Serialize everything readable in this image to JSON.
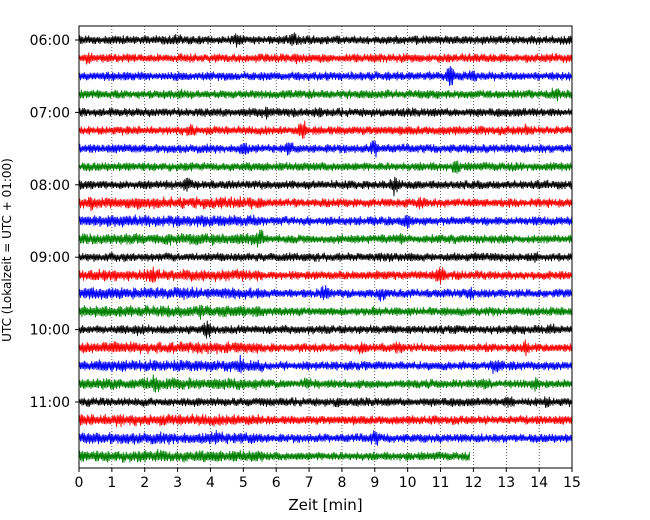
{
  "chart_data": {
    "type": "line",
    "title": "",
    "xlabel": "Zeit  [min]",
    "ylabel": "UTC (Lokalzeit = UTC + 01:00)",
    "xlim": [
      0,
      15
    ],
    "x_ticks": [
      0,
      1,
      2,
      3,
      4,
      5,
      6,
      7,
      8,
      9,
      10,
      11,
      12,
      13,
      14,
      15
    ],
    "y_ticks": [
      "06:00",
      "07:00",
      "08:00",
      "09:00",
      "10:00",
      "11:00"
    ],
    "grid": "vertical dotted lines at each minute",
    "rows_per_hour": 4,
    "trace_duration_min": 15,
    "trace_colors": [
      "#000000",
      "#ff0000",
      "#0000ff",
      "#008000"
    ],
    "traces": [
      {
        "start": "06:00",
        "color": "#000000",
        "end_min": 15,
        "events": [
          [
            3.0,
            1.6
          ],
          [
            4.8,
            1.8
          ],
          [
            6.5,
            2.2
          ]
        ]
      },
      {
        "start": "06:15",
        "color": "#ff0000",
        "end_min": 15,
        "events": [
          [
            0.3,
            1.8
          ],
          [
            6.6,
            1.6
          ]
        ]
      },
      {
        "start": "06:30",
        "color": "#0000ff",
        "end_min": 15,
        "events": [
          [
            11.3,
            3.0
          ],
          [
            12.0,
            1.8
          ]
        ]
      },
      {
        "start": "06:45",
        "color": "#008000",
        "end_min": 15,
        "events": [
          [
            3.1,
            1.6
          ],
          [
            14.5,
            2.0
          ]
        ]
      },
      {
        "start": "07:00",
        "color": "#000000",
        "end_min": 15,
        "events": [
          [
            5.7,
            1.6
          ],
          [
            7.3,
            1.6
          ]
        ]
      },
      {
        "start": "07:15",
        "color": "#ff0000",
        "end_min": 15,
        "events": [
          [
            3.4,
            2.0
          ],
          [
            6.8,
            3.0
          ],
          [
            13.6,
            1.6
          ]
        ]
      },
      {
        "start": "07:30",
        "color": "#0000ff",
        "end_min": 15,
        "events": [
          [
            5.0,
            2.2
          ],
          [
            6.4,
            2.0
          ],
          [
            9.0,
            2.4
          ]
        ]
      },
      {
        "start": "07:45",
        "color": "#008000",
        "end_min": 15,
        "events": [
          [
            11.5,
            2.0
          ]
        ]
      },
      {
        "start": "08:00",
        "color": "#000000",
        "end_min": 15,
        "events": [
          [
            3.3,
            2.0
          ],
          [
            9.6,
            2.6
          ]
        ]
      },
      {
        "start": "08:15",
        "color": "#ff0000",
        "end_min": 15,
        "events": [
          [
            0.4,
            1.6
          ],
          [
            10.4,
            1.6
          ]
        ]
      },
      {
        "start": "08:30",
        "color": "#0000ff",
        "end_min": 15,
        "events": [
          [
            1.0,
            1.6
          ],
          [
            10.0,
            2.0
          ]
        ]
      },
      {
        "start": "08:45",
        "color": "#008000",
        "end_min": 15,
        "events": [
          [
            5.5,
            1.8
          ],
          [
            9.8,
            1.6
          ]
        ]
      },
      {
        "start": "09:00",
        "color": "#000000",
        "end_min": 15,
        "events": [
          [
            13.9,
            1.6
          ]
        ]
      },
      {
        "start": "09:15",
        "color": "#ff0000",
        "end_min": 15,
        "events": [
          [
            2.2,
            2.0
          ],
          [
            11.0,
            2.6
          ]
        ]
      },
      {
        "start": "09:30",
        "color": "#0000ff",
        "end_min": 15,
        "events": [
          [
            7.5,
            2.4
          ],
          [
            9.2,
            1.8
          ],
          [
            11.9,
            1.8
          ]
        ]
      },
      {
        "start": "09:45",
        "color": "#008000",
        "end_min": 15,
        "events": [
          [
            3.7,
            1.6
          ],
          [
            9.0,
            1.6
          ]
        ]
      },
      {
        "start": "10:00",
        "color": "#000000",
        "end_min": 15,
        "events": [
          [
            1.8,
            1.6
          ],
          [
            3.9,
            2.4
          ],
          [
            14.4,
            1.6
          ]
        ]
      },
      {
        "start": "10:15",
        "color": "#ff0000",
        "end_min": 15,
        "events": [
          [
            8.6,
            1.6
          ],
          [
            9.7,
            1.6
          ],
          [
            13.6,
            1.8
          ]
        ]
      },
      {
        "start": "10:30",
        "color": "#0000ff",
        "end_min": 15,
        "events": [
          [
            4.9,
            1.8
          ],
          [
            12.6,
            2.0
          ],
          [
            12.8,
            1.8
          ]
        ]
      },
      {
        "start": "10:45",
        "color": "#008000",
        "end_min": 15,
        "events": [
          [
            2.3,
            2.0
          ],
          [
            6.9,
            1.8
          ],
          [
            12.4,
            1.6
          ],
          [
            13.9,
            2.0
          ]
        ]
      },
      {
        "start": "11:00",
        "color": "#000000",
        "end_min": 15,
        "events": [
          [
            7.9,
            1.6
          ],
          [
            13.1,
            1.8
          ],
          [
            14.2,
            1.6
          ]
        ]
      },
      {
        "start": "11:15",
        "color": "#ff0000",
        "end_min": 15,
        "events": [
          [
            1.2,
            1.4
          ]
        ]
      },
      {
        "start": "11:30",
        "color": "#0000ff",
        "end_min": 15,
        "events": [
          [
            4.2,
            1.6
          ],
          [
            9.0,
            2.2
          ]
        ]
      },
      {
        "start": "11:45",
        "color": "#008000",
        "end_min": 11.9,
        "events": [
          [
            2.5,
            1.4
          ]
        ]
      }
    ]
  }
}
